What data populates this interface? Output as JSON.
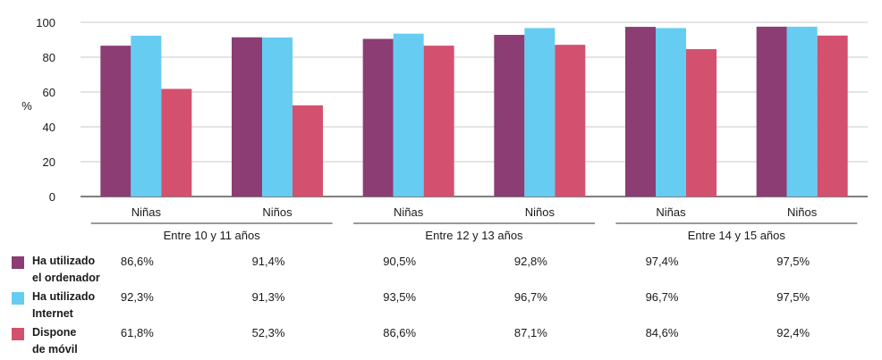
{
  "chart_data": {
    "type": "bar",
    "ylabel": "%",
    "ylim": [
      0,
      100
    ],
    "yticks": [
      0,
      20,
      40,
      60,
      80,
      100
    ],
    "grid": true,
    "categories": [
      "Niñas",
      "Niños",
      "Niñas",
      "Niños",
      "Niñas",
      "Niños"
    ],
    "groups": [
      "Entre 10 y 11 años",
      "Entre 12 y 13 años",
      "Entre 14 y 15 años"
    ],
    "series": [
      {
        "name": "Ha utilizado\nel ordenador",
        "color": "#8b3d74",
        "values": [
          86.6,
          91.4,
          90.5,
          92.8,
          97.4,
          97.5
        ],
        "labels": [
          "86,6%",
          "91,4%",
          "90,5%",
          "92,8%",
          "97,4%",
          "97,5%"
        ]
      },
      {
        "name": "Ha utilizado\nInternet",
        "color": "#66ccf2",
        "values": [
          92.3,
          91.3,
          93.5,
          96.7,
          96.7,
          97.5
        ],
        "labels": [
          "92,3%",
          "91,3%",
          "93,5%",
          "96,7%",
          "96,7%",
          "97,5%"
        ]
      },
      {
        "name": "Dispone\nde móvil",
        "color": "#d4506f",
        "values": [
          61.8,
          52.3,
          86.6,
          87.1,
          84.6,
          92.4
        ],
        "labels": [
          "61,8%",
          "52,3%",
          "86,6%",
          "87,1%",
          "84,6%",
          "92,4%"
        ]
      }
    ]
  }
}
